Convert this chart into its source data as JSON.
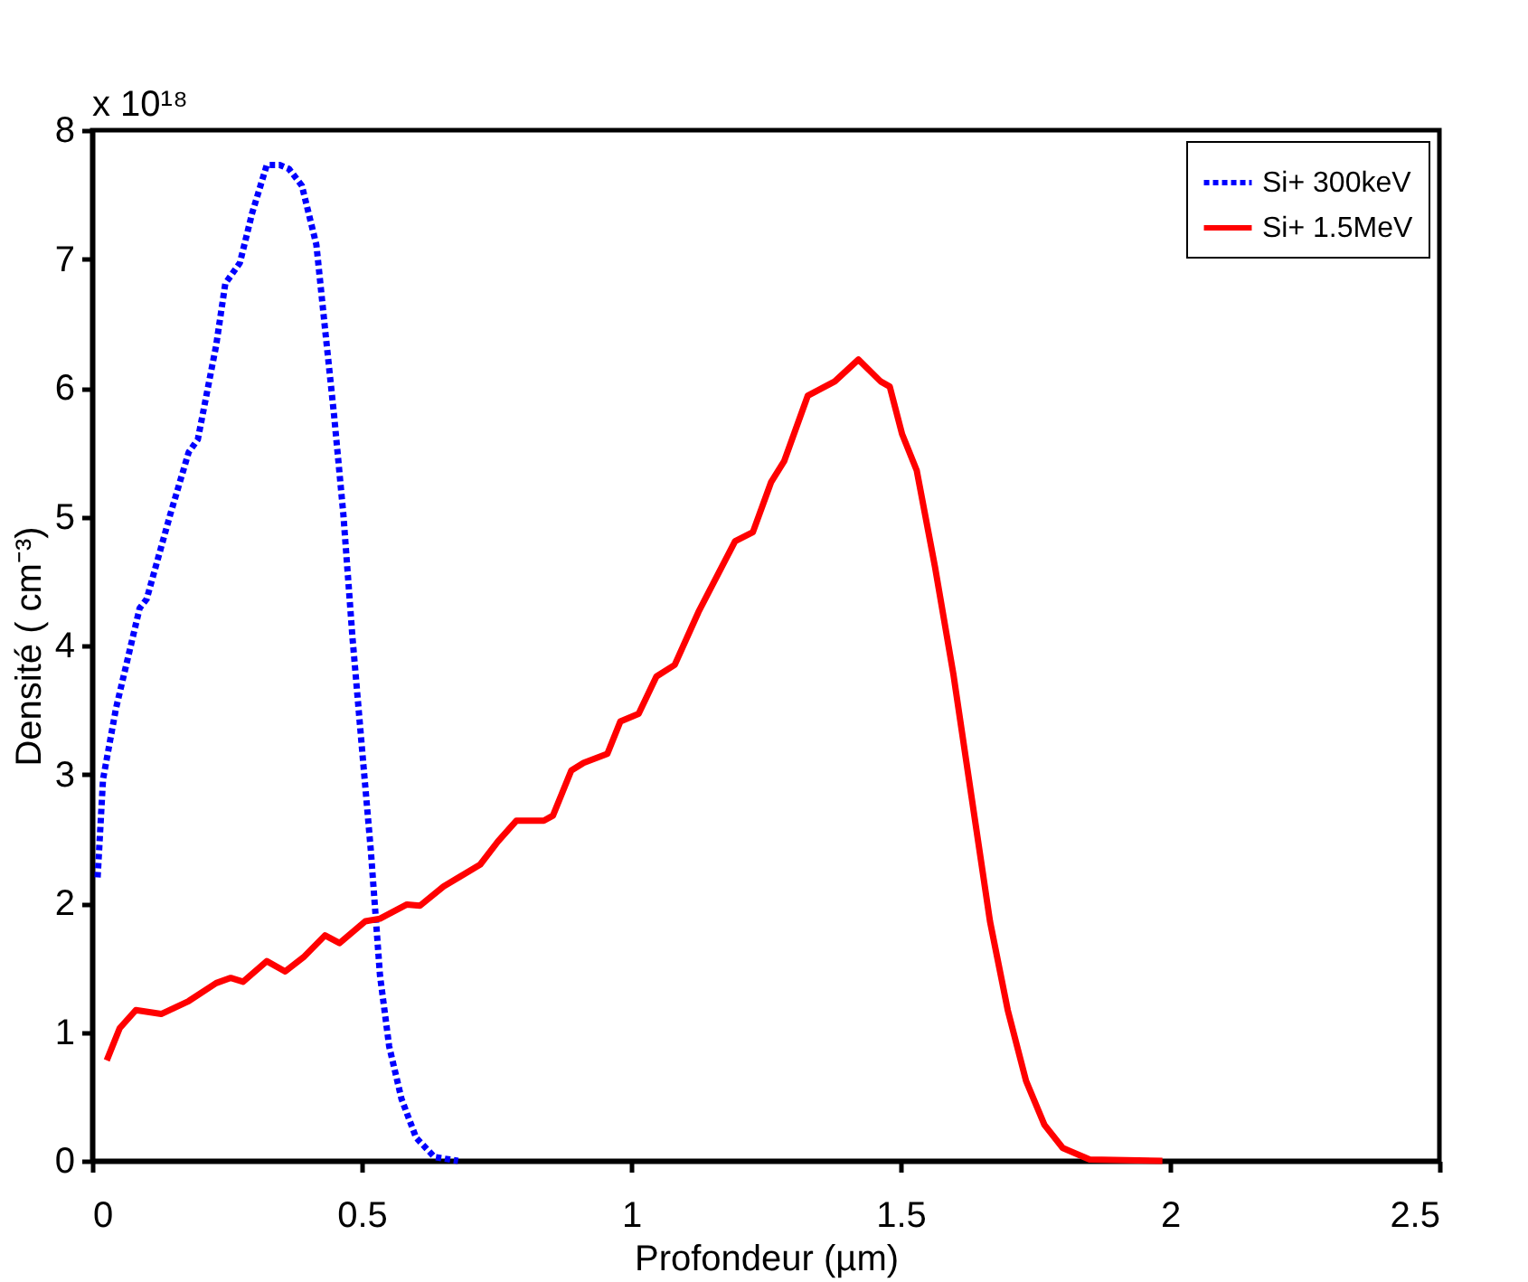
{
  "chart_data": {
    "type": "line",
    "xlabel": "Profondeur (µm)",
    "ylabel": "Densité ( cm⁻³)",
    "xlim": [
      0,
      2.5
    ],
    "xticks": [
      0,
      0.5,
      1,
      1.5,
      2,
      2.5
    ],
    "ylim": [
      0,
      8
    ],
    "yticks": [
      0,
      1,
      2,
      3,
      4,
      5,
      6,
      7,
      8
    ],
    "grid": false,
    "legend": "top right",
    "annotations": [
      "x 10¹⁸"
    ],
    "series": [
      {
        "name": "Si+ 300keV",
        "color": "#0000ff",
        "line_style": "dotted",
        "x": [
          0.01,
          0.02,
          0.044,
          0.088,
          0.101,
          0.145,
          0.179,
          0.196,
          0.23,
          0.247,
          0.274,
          0.297,
          0.324,
          0.348,
          0.365,
          0.389,
          0.416,
          0.432,
          0.449,
          0.466,
          0.483,
          0.5,
          0.517,
          0.534,
          0.551,
          0.574,
          0.601,
          0.635,
          0.679
        ],
        "values": [
          2.2,
          2.96,
          3.51,
          4.29,
          4.36,
          5.02,
          5.5,
          5.6,
          6.33,
          6.81,
          6.97,
          7.36,
          7.73,
          7.73,
          7.7,
          7.57,
          7.11,
          6.46,
          5.78,
          5.02,
          4.06,
          3.23,
          2.41,
          1.44,
          0.89,
          0.48,
          0.18,
          0.03,
          0
        ]
      },
      {
        "name": "Si+ 1.5MeV",
        "color": "#ff0000",
        "line_style": "solid",
        "x": [
          0.027,
          0.051,
          0.081,
          0.128,
          0.179,
          0.23,
          0.257,
          0.28,
          0.324,
          0.358,
          0.392,
          0.432,
          0.459,
          0.507,
          0.534,
          0.584,
          0.608,
          0.652,
          0.72,
          0.753,
          0.787,
          0.838,
          0.855,
          0.889,
          0.912,
          0.956,
          0.98,
          1.014,
          1.047,
          1.081,
          1.125,
          1.193,
          1.226,
          1.26,
          1.284,
          1.328,
          1.378,
          1.422,
          1.463,
          1.48,
          1.503,
          1.53,
          1.564,
          1.598,
          1.632,
          1.666,
          1.699,
          1.733,
          1.767,
          1.801,
          1.851,
          1.986
        ],
        "values": [
          0.78,
          1.03,
          1.17,
          1.14,
          1.24,
          1.38,
          1.42,
          1.39,
          1.55,
          1.47,
          1.58,
          1.75,
          1.69,
          1.86,
          1.88,
          1.99,
          1.98,
          2.13,
          2.3,
          2.48,
          2.64,
          2.64,
          2.68,
          3.03,
          3.09,
          3.16,
          3.41,
          3.47,
          3.76,
          3.85,
          4.26,
          4.81,
          4.88,
          5.27,
          5.43,
          5.94,
          6.05,
          6.22,
          6.05,
          6.01,
          5.64,
          5.36,
          4.61,
          3.78,
          2.82,
          1.86,
          1.17,
          0.62,
          0.28,
          0.1,
          0.01,
          0
        ]
      }
    ]
  }
}
